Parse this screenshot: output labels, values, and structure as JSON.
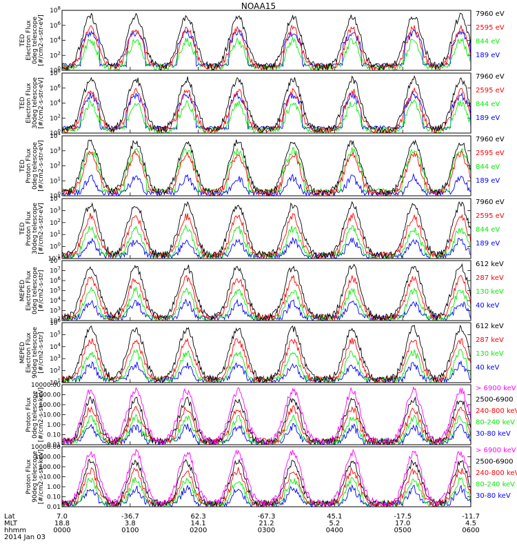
{
  "title": "NOAA15",
  "colors": {
    "blue": "#0000ff",
    "red": "#ff0000",
    "green": "#00ee00",
    "black": "#000000",
    "magenta": "#ff00ff"
  },
  "chart_data": [
    {
      "type": "line",
      "ylabel": [
        "TED",
        "Electron Flux",
        "0deg telescope",
        "[#/cm2-s-str-eV]"
      ],
      "y_ticks": [
        "10^8",
        "10^6",
        "10^4",
        "10^2",
        "10^0"
      ],
      "series": [
        {
          "name": "7960 eV",
          "color": "#000000"
        },
        {
          "name": "2595 eV",
          "color": "#ff0000"
        },
        {
          "name": "844 eV",
          "color": "#00ee00"
        },
        {
          "name": "189 eV",
          "color": "#0000ff"
        }
      ]
    },
    {
      "type": "line",
      "ylabel": [
        "TED",
        "Electron Flux",
        "30deg telescope",
        "[#/cm2-s-str-eV]"
      ],
      "y_ticks": [
        "10^8",
        "10^6",
        "10^4",
        "10^2",
        "10^0"
      ],
      "series": [
        {
          "name": "7960 eV",
          "color": "#000000"
        },
        {
          "name": "2595 eV",
          "color": "#ff0000"
        },
        {
          "name": "844 eV",
          "color": "#00ee00"
        },
        {
          "name": "189 eV",
          "color": "#0000ff"
        }
      ]
    },
    {
      "type": "line",
      "ylabel": [
        "TED",
        "Proton Flux",
        "0deg telescope",
        "[#/cm2-s-str-eV]"
      ],
      "y_ticks": [
        "10^4",
        "10^3",
        "10^2",
        "10^1",
        "10^0"
      ],
      "series": [
        {
          "name": "7960 eV",
          "color": "#000000"
        },
        {
          "name": "2595 eV",
          "color": "#ff0000"
        },
        {
          "name": "844 eV",
          "color": "#00ee00"
        },
        {
          "name": "189 eV",
          "color": "#0000ff"
        }
      ]
    },
    {
      "type": "line",
      "ylabel": [
        "TED",
        "Proton Flux",
        "30deg telescope",
        "[#/cm2-s-str-eV]"
      ],
      "y_ticks": [
        "10^4",
        "10^3",
        "10^2",
        "10^1",
        "10^0",
        "10^-1"
      ],
      "series": [
        {
          "name": "7960 eV",
          "color": "#000000"
        },
        {
          "name": "2595 eV",
          "color": "#ff0000"
        },
        {
          "name": "844 eV",
          "color": "#00ee00"
        },
        {
          "name": "189 eV",
          "color": "#0000ff"
        }
      ]
    },
    {
      "type": "line",
      "ylabel": [
        "MEPED",
        "Electron Flux",
        "0deg telescope",
        "[#/cm2-s-str]"
      ],
      "y_ticks": [
        "10^8",
        "10^7",
        "10^6",
        "10^5",
        "10^4",
        "10^3",
        "10^2"
      ],
      "series": [
        {
          "name": "612 keV",
          "color": "#000000"
        },
        {
          "name": "287 keV",
          "color": "#ff0000"
        },
        {
          "name": "130 keV",
          "color": "#00ee00"
        },
        {
          "name": "40 keV",
          "color": "#0000ff"
        }
      ]
    },
    {
      "type": "line",
      "ylabel": [
        "MEPED",
        "Electron Flux",
        "90deg telescope",
        "[#/cm2-s-str]"
      ],
      "y_ticks": [
        "10^6",
        "10^5",
        "10^4",
        "10^3",
        "10^2",
        "10^1"
      ],
      "series": [
        {
          "name": "612 keV",
          "color": "#000000"
        },
        {
          "name": "287 keV",
          "color": "#ff0000"
        },
        {
          "name": "130 keV",
          "color": "#00ee00"
        },
        {
          "name": "40 keV",
          "color": "#0000ff"
        }
      ]
    },
    {
      "type": "line",
      "ylabel": [
        "Proton Flux",
        "0deg telescope",
        "[#/cm2-s-str-keV]"
      ],
      "y_ticks": [
        "10000.00",
        "1000.00",
        "100.00",
        "10.00",
        "1.00",
        "0.10",
        "0.01"
      ],
      "series": [
        {
          "name": "> 6900 keV",
          "color": "#ff00ff"
        },
        {
          "name": "2500-6900",
          "color": "#000000"
        },
        {
          "name": "240-800 keV",
          "color": "#ff0000"
        },
        {
          "name": "80-240 keV",
          "color": "#00ee00"
        },
        {
          "name": "30-80 keV",
          "color": "#0000ff"
        }
      ]
    },
    {
      "type": "line",
      "ylabel": [
        "Proton Flux",
        "90deg telescope",
        "[#/cm2-s-str-keV]"
      ],
      "y_ticks": [
        "10000.00",
        "1000.00",
        "100.00",
        "10.00",
        "1.00",
        "0.10",
        "0.01"
      ],
      "series": [
        {
          "name": "> 6900 keV",
          "color": "#ff00ff"
        },
        {
          "name": "2500-6900",
          "color": "#000000"
        },
        {
          "name": "240-800 keV",
          "color": "#ff0000"
        },
        {
          "name": "80-240 keV",
          "color": "#00ee00"
        },
        {
          "name": "30-80 keV",
          "color": "#0000ff"
        }
      ]
    }
  ],
  "x_axis": {
    "row_labels": [
      "Lat",
      "MLT",
      "hhmm",
      "2014 Jan 03"
    ],
    "lat": [
      "7.0",
      "-36.7",
      "62.3",
      "-67.3",
      "45.1",
      "-17.5",
      "-11.7"
    ],
    "mlt": [
      "18.8",
      "3.8",
      "14.1",
      "21.2",
      "5.2",
      "17.0",
      "4.5"
    ],
    "hhmm": [
      "0000",
      "0100",
      "0200",
      "0300",
      "0400",
      "0500",
      "0600"
    ]
  }
}
